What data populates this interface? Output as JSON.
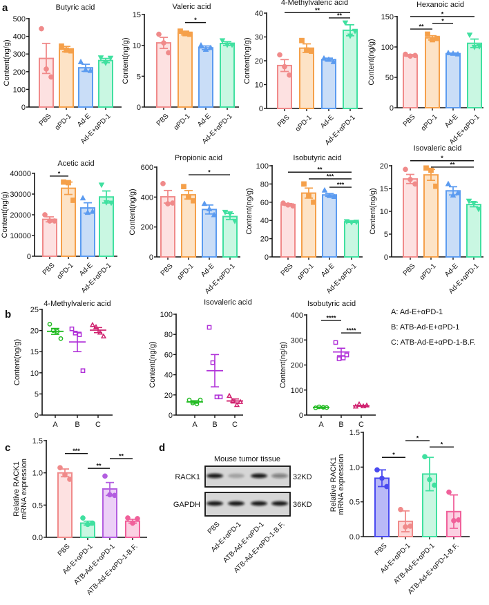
{
  "panel_labels": {
    "a": "a",
    "b": "b",
    "c": "c",
    "d": "d"
  },
  "legend_b": [
    "A: Ad-E+αPD-1",
    "B: ATB-Ad-E+αPD-1",
    "C: ATB-Ad-E+αPD-1-B.F."
  ],
  "blot": {
    "title": "Mouse tumor tissue",
    "rows": [
      {
        "label": "RACK1",
        "size": "32KD",
        "band_intensity": [
          0.95,
          0.25,
          0.95,
          0.45
        ]
      },
      {
        "label": "GAPDH",
        "size": "36KD",
        "band_intensity": [
          0.95,
          0.95,
          0.95,
          0.95
        ]
      }
    ],
    "lanes": [
      "PBS",
      "Ad-E+αPD-1",
      "ATB-Ad-E+αPD-1",
      "ATB-Ad-E+αPD-1-B.F."
    ]
  },
  "chart_data": [
    {
      "id": "butyric",
      "panel": "a",
      "type": "bar",
      "title": "Butyric acid",
      "ylabel": [
        "Content(ng/g)"
      ],
      "ylim": [
        0,
        500
      ],
      "yticks": [
        "0",
        "100",
        "200",
        "300",
        "400",
        "500"
      ],
      "categories": [
        "PBS",
        "αPD-1",
        "Ad-E",
        "Ad-E+αPD-1"
      ],
      "means": [
        275,
        328,
        222,
        263
      ],
      "err": [
        85,
        15,
        20,
        12
      ],
      "points": [
        [
          443,
          215,
          170
        ],
        [
          345,
          322,
          318
        ],
        [
          255,
          210,
          205
        ],
        [
          280,
          250,
          278
        ]
      ],
      "stats": []
    },
    {
      "id": "valeric",
      "panel": "a",
      "type": "bar",
      "title": "Valeric acid",
      "ylabel": [
        "Content(ng/g)"
      ],
      "ylim": [
        0,
        15
      ],
      "yticks": [
        "0",
        "5",
        "10",
        "15"
      ],
      "categories": [
        "PBS",
        "αPD-1",
        "Ad-E",
        "Ad-E+αPD-1"
      ],
      "means": [
        10.4,
        12.0,
        9.6,
        10.3
      ],
      "err": [
        0.9,
        0.3,
        0.3,
        0.3
      ],
      "points": [
        [
          11.8,
          10.4,
          8.8
        ],
        [
          12.3,
          11.9,
          11.8
        ],
        [
          10.0,
          9.3,
          9.6
        ],
        [
          10.8,
          10.1,
          10.1
        ]
      ],
      "stats": [
        {
          "from": 1,
          "to": 2,
          "y": 13.7,
          "label": "*"
        }
      ]
    },
    {
      "id": "methylvaleric",
      "panel": "a",
      "type": "bar",
      "title": "4-Methylvaleric acid",
      "ylabel": [
        "Content(ng/g)"
      ],
      "ylim": [
        0,
        40
      ],
      "yticks": [
        "0",
        "10",
        "20",
        "30",
        "40"
      ],
      "categories": [
        "PBS",
        "αPD-1",
        "Ad-E",
        "Ad-E+αPD-1"
      ],
      "means": [
        18,
        25.3,
        20.5,
        32.8
      ],
      "err": [
        2.5,
        1.8,
        0.6,
        2.3
      ],
      "points": [
        [
          22.5,
          17.5,
          14
        ],
        [
          28.5,
          24.5,
          24
        ],
        [
          21,
          20.5,
          19.5
        ],
        [
          36,
          30.5,
          32.5
        ]
      ],
      "stats": [
        {
          "from": 0,
          "to": 3,
          "y": 40.2,
          "label": "**"
        },
        {
          "from": 2,
          "to": 3,
          "y": 38,
          "label": "**"
        }
      ]
    },
    {
      "id": "hexanoic",
      "panel": "a",
      "type": "bar",
      "title": "Hexanoic acid",
      "ylabel": [
        "Content(ng/g)"
      ],
      "ylim": [
        0,
        150
      ],
      "yticks": [
        "0",
        "50",
        "100",
        "150"
      ],
      "categories": [
        "PBS",
        "αPD-1",
        "Ad-E",
        "Ad-E+αPD-1"
      ],
      "means": [
        86,
        115,
        89,
        106
      ],
      "err": [
        1.5,
        3.5,
        1,
        7
      ],
      "points": [
        [
          88,
          85,
          86
        ],
        [
          121,
          112,
          114
        ],
        [
          90,
          89,
          88
        ],
        [
          120,
          100,
          101
        ]
      ],
      "stats": [
        {
          "from": 0,
          "to": 3,
          "y": 150,
          "label": "*"
        },
        {
          "from": 0,
          "to": 1,
          "y": 129.5,
          "label": "**"
        },
        {
          "from": 1,
          "to": 2,
          "y": 138.6,
          "label": "*"
        }
      ]
    },
    {
      "id": "acetic",
      "panel": "a",
      "type": "bar",
      "title": "Acetic acid",
      "ylabel": [
        "Content(ng/g)"
      ],
      "ylim": [
        0,
        40000
      ],
      "yticks": [
        "0",
        "10000",
        "20000",
        "30000",
        "40000"
      ],
      "categories": [
        "PBS",
        "αPD-1",
        "Ad-E",
        "Ad-E+αPD-1"
      ],
      "means": [
        17800,
        32800,
        23300,
        28600
      ],
      "err": [
        1200,
        3000,
        2500,
        2900
      ],
      "points": [
        [
          20000,
          17000,
          17000
        ],
        [
          35800,
          35500,
          27000
        ],
        [
          28000,
          21000,
          21500
        ],
        [
          34500,
          26000,
          25800
        ]
      ],
      "stats": [
        {
          "from": 0,
          "to": 1,
          "y": 38700,
          "label": "*"
        }
      ]
    },
    {
      "id": "propionic",
      "panel": "a",
      "type": "bar",
      "title": "Propionic acid",
      "ylabel": [
        "Content(ng/g)"
      ],
      "ylim": [
        0,
        600
      ],
      "yticks": [
        "0",
        "200",
        "400",
        "600"
      ],
      "categories": [
        "PBS",
        "αPD-1",
        "Ad-E",
        "Ad-E+αPD-1"
      ],
      "means": [
        402,
        415,
        317,
        270
      ],
      "err": [
        42,
        28,
        30,
        20
      ],
      "points": [
        [
          490,
          355,
          360
        ],
        [
          470,
          400,
          375
        ],
        [
          355,
          320,
          280
        ],
        [
          300,
          290,
          240
        ]
      ],
      "stats": [
        {
          "from": 1,
          "to": 3,
          "y": 549,
          "label": "*"
        }
      ]
    },
    {
      "id": "isobutyric_a",
      "panel": "a",
      "type": "bar",
      "title": "Isobutyric acid",
      "ylabel": [
        "Content(ng/g)"
      ],
      "ylim": [
        0,
        100
      ],
      "yticks": [
        "0",
        "20",
        "40",
        "60",
        "80",
        "100"
      ],
      "categories": [
        "PBS",
        "αPD-1",
        "Ad-E",
        "Ad-E+αPD-1"
      ],
      "means": [
        57.5,
        70,
        68,
        38.5
      ],
      "err": [
        1,
        5.5,
        1.5,
        0.7
      ],
      "points": [
        [
          59,
          57,
          56
        ],
        [
          80,
          67,
          60
        ],
        [
          73,
          67,
          66
        ],
        [
          39,
          38,
          38.5
        ]
      ],
      "stats": [
        {
          "from": 0,
          "to": 3,
          "y": 93,
          "label": "**"
        },
        {
          "from": 1,
          "to": 3,
          "y": 85.6,
          "label": "***"
        },
        {
          "from": 2,
          "to": 3,
          "y": 76.5,
          "label": "***"
        }
      ]
    },
    {
      "id": "isovaleric_a",
      "panel": "a",
      "type": "bar",
      "title": "Isovaleric acid",
      "ylabel": [
        "Content(ng/g)"
      ],
      "ylim": [
        0,
        20
      ],
      "yticks": [
        "0",
        "5",
        "10",
        "15",
        "20"
      ],
      "categories": [
        "PBS",
        "αPD-1",
        "Ad-E",
        "Ad-E+αPD-1"
      ],
      "means": [
        17.1,
        18,
        14.5,
        11.5
      ],
      "err": [
        1,
        1.2,
        0.9,
        0.5
      ],
      "points": [
        [
          19.2,
          17,
          16
        ],
        [
          19.5,
          19,
          15.5
        ],
        [
          16,
          13.5,
          14
        ],
        [
          12.3,
          11.8,
          10.5
        ]
      ],
      "stats": [
        {
          "from": 0,
          "to": 3,
          "y": 21.1,
          "label": "*"
        },
        {
          "from": 1,
          "to": 3,
          "y": 19.7,
          "label": "**"
        }
      ]
    },
    {
      "id": "methylvaleric_b",
      "panel": "b",
      "type": "scatter",
      "title": "4-Methylvaleric acid",
      "ylabel": [
        "Content(ng/g)"
      ],
      "ylim": [
        0,
        25
      ],
      "yticks": [
        "0",
        "5",
        "10",
        "15",
        "20",
        "25"
      ],
      "categories": [
        "A",
        "B",
        "C"
      ],
      "means": [
        19.8,
        17.3,
        20.1
      ],
      "err": [
        0.7,
        2.3,
        0.6
      ],
      "points": [
        [
          21.5,
          20,
          19.8,
          18.1
        ],
        [
          20.4,
          19.4,
          19,
          10.5
        ],
        [
          21.3,
          20.8,
          19.5,
          18.6
        ]
      ],
      "stats": []
    },
    {
      "id": "isovaleric_b",
      "panel": "b",
      "type": "scatter",
      "title": "Isovaleric acid",
      "ylabel": [
        "Content(ng/g)"
      ],
      "ylim": [
        0,
        100
      ],
      "yticks": [
        "0",
        "20",
        "40",
        "60",
        "80",
        "100"
      ],
      "categories": [
        "A",
        "B",
        "C"
      ],
      "means": [
        13,
        44,
        14
      ],
      "err": [
        1.2,
        16,
        2
      ],
      "points": [
        [
          15,
          12,
          11,
          15
        ],
        [
          87,
          52,
          18,
          18
        ],
        [
          19,
          14,
          10,
          13
        ]
      ],
      "stats": []
    },
    {
      "id": "isobutyric_b",
      "panel": "b",
      "type": "scatter",
      "title": "Isobutyric acid",
      "ylabel": [
        "Content(ng/g)"
      ],
      "ylim": [
        0,
        400
      ],
      "yticks": [
        "0",
        "100",
        "200",
        "300",
        "400"
      ],
      "categories": [
        "A",
        "B",
        "C"
      ],
      "means": [
        30,
        252,
        37
      ],
      "err": [
        2,
        15,
        2
      ],
      "points": [
        [
          29,
          33,
          31,
          30
        ],
        [
          290,
          225,
          228,
          240
        ],
        [
          34,
          43,
          35,
          38
        ]
      ],
      "stats": [
        {
          "from": 0,
          "to": 1,
          "y": 378,
          "label": "****"
        },
        {
          "from": 1,
          "to": 2,
          "y": 328,
          "label": "****"
        }
      ]
    },
    {
      "id": "rack1_mrna",
      "panel": "c",
      "type": "bar",
      "title": "",
      "ylabel": [
        "Relative RACK1",
        "mRNA expression"
      ],
      "ylim": [
        0,
        1.5
      ],
      "yticks": [
        "0.0",
        "0.5",
        "1.0",
        "1.5"
      ],
      "categories": [
        "PBS",
        "Ad-E+αPD-1",
        "ATB-Ad-E+αPD-1",
        "ATB-Ad-E+αPD-1-B.F."
      ],
      "means": [
        1.0,
        0.22,
        0.75,
        0.25
      ],
      "err": [
        0.06,
        0.03,
        0.1,
        0.03
      ],
      "points": [
        [
          1.08,
          0.97,
          0.9
        ],
        [
          0.3,
          0.2,
          0.22
        ],
        [
          0.95,
          0.66,
          0.65
        ],
        [
          0.3,
          0.22,
          0.29
        ]
      ],
      "stats": [
        {
          "from": 0,
          "to": 1,
          "y": 1.3,
          "label": "***"
        },
        {
          "from": 1,
          "to": 2,
          "y": 1.07,
          "label": "**"
        },
        {
          "from": 2,
          "to": 3,
          "y": 1.22,
          "label": "**"
        }
      ]
    },
    {
      "id": "rack1_protein",
      "panel": "d",
      "type": "bar",
      "title": "",
      "ylabel": [
        "Relative RACK1",
        "mRNA expression"
      ],
      "ylim": [
        0,
        1.5
      ],
      "yticks": [
        "0.0",
        "0.5",
        "1.0",
        "1.5"
      ],
      "categories": [
        "PBS",
        "Ad-E+αPD-1",
        "ATB-Ad-E+αPD-1",
        "ATB-Ad-E+αPD-1-B.F."
      ],
      "means": [
        0.84,
        0.22,
        0.9,
        0.36
      ],
      "err": [
        0.12,
        0.15,
        0.24,
        0.24
      ],
      "points": [
        [
          0.96,
          0.84,
          0.72
        ],
        [
          0.39,
          0.14,
          0.15
        ],
        [
          1.15,
          0.82,
          0.74
        ],
        [
          0.64,
          0.23,
          0.24
        ]
      ],
      "stats": [
        {
          "from": 0,
          "to": 1,
          "y": 1.14,
          "label": "*"
        },
        {
          "from": 1,
          "to": 2,
          "y": 1.38,
          "label": "*"
        },
        {
          "from": 2,
          "to": 3,
          "y": 1.29,
          "label": "*"
        }
      ]
    }
  ],
  "colors": {
    "a": [
      [
        "#f08a8a",
        "#fde1e1"
      ],
      [
        "#f5a04a",
        "#fde3c6"
      ],
      [
        "#5b9bf0",
        "#c9ddf7"
      ],
      [
        "#40e0a0",
        "#c9f7e2"
      ]
    ],
    "b": [
      "#22bb22",
      "#b030d8",
      "#d0206e"
    ],
    "c": [
      [
        "#f08a8a",
        "#fde1e1"
      ],
      [
        "#40e0a0",
        "#c9f7e2"
      ],
      [
        "#b35ee0",
        "#ecd0f7"
      ],
      [
        "#f0609a",
        "#fbd0e2"
      ]
    ],
    "d": [
      [
        "#4a4af0",
        "#b9b9f7"
      ],
      [
        "#f08a8a",
        "#fdd8d8"
      ],
      [
        "#40e0a0",
        "#c9f7e2"
      ],
      [
        "#f0609a",
        "#fbd0e2"
      ]
    ]
  }
}
